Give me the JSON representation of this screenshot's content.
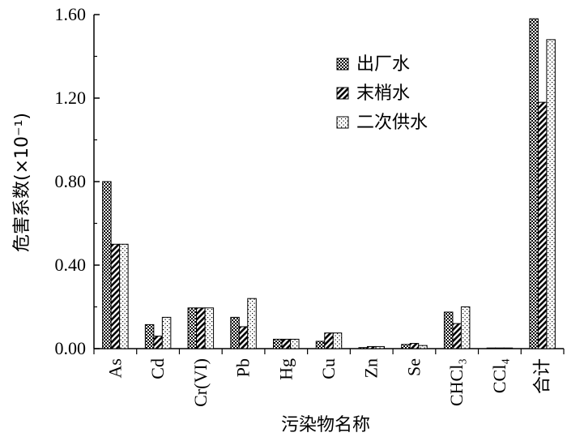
{
  "chart_data": {
    "type": "bar",
    "xlabel": "污染物名称",
    "ylabel": "危害系数(×10⁻¹)",
    "ylim": [
      0,
      1.6
    ],
    "yticks": [
      "0.00",
      "0.40",
      "0.80",
      "1.20",
      "1.60"
    ],
    "categories": [
      "As",
      "Cd",
      "Cr(VI)",
      "Pb",
      "Hg",
      "Cu",
      "Zn",
      "Se",
      "CHCl₃",
      "CCl₄",
      "合计"
    ],
    "series": [
      {
        "name": "出厂水",
        "values": [
          0.8,
          0.115,
          0.195,
          0.15,
          0.045,
          0.035,
          0.005,
          0.02,
          0.175,
          0.002,
          1.58
        ]
      },
      {
        "name": "末梢水",
        "values": [
          0.5,
          0.06,
          0.195,
          0.105,
          0.045,
          0.075,
          0.01,
          0.025,
          0.12,
          0.002,
          1.18
        ]
      },
      {
        "name": "二次供水",
        "values": [
          0.5,
          0.15,
          0.195,
          0.24,
          0.045,
          0.075,
          0.01,
          0.015,
          0.2,
          0.002,
          1.48
        ]
      }
    ],
    "legend_position": "top-right",
    "grid": false
  }
}
